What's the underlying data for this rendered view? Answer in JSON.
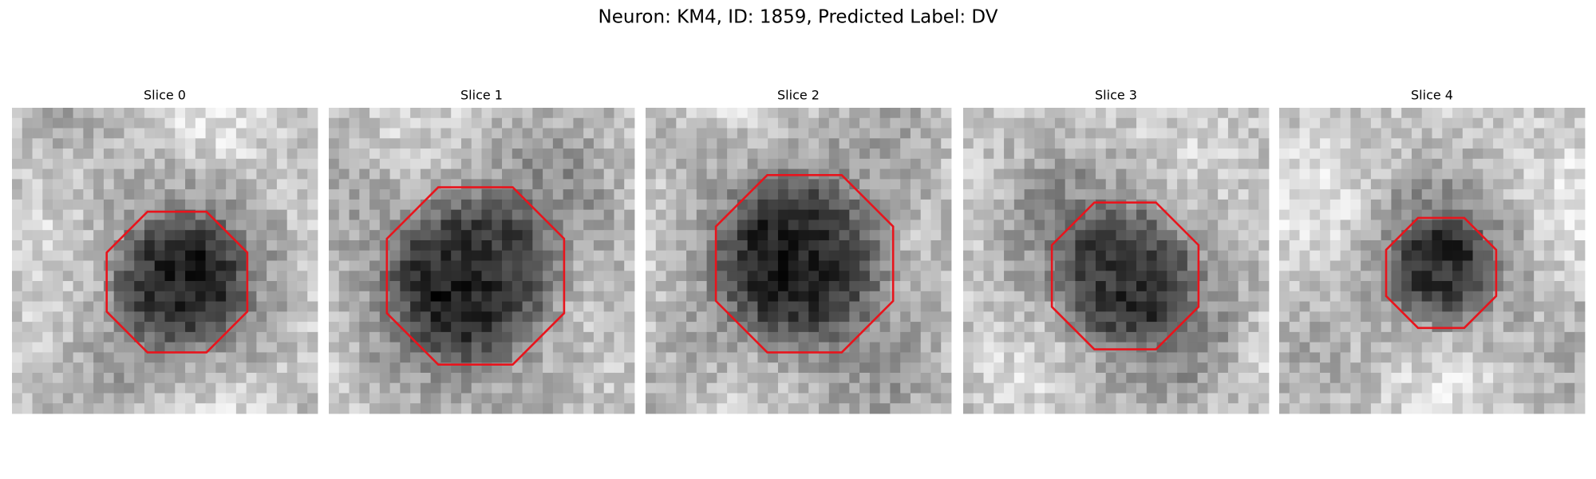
{
  "title": "Neuron: KM4, ID: 1859, Predicted Label: DV",
  "panels": [
    {
      "title": "Slice 0"
    },
    {
      "title": "Slice 1"
    },
    {
      "title": "Slice 2"
    },
    {
      "title": "Slice 3"
    },
    {
      "title": "Slice 4"
    }
  ]
}
